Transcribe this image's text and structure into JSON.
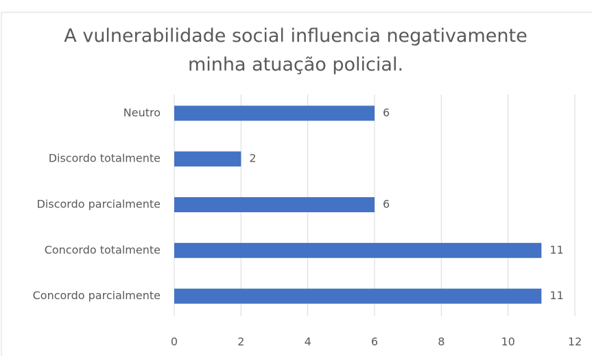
{
  "chart_data": {
    "type": "barh",
    "title": "A vulnerabilidade social influencia negativamente minha atuação policial.",
    "categories": [
      "Neutro",
      "Discordo totalmente",
      "Discordo parcialmente",
      "Concordo totalmente",
      "Concordo parcialmente"
    ],
    "values": [
      6,
      2,
      6,
      11,
      11
    ],
    "color": "#4472c4",
    "xlim": [
      0,
      12
    ],
    "xticks": [
      0,
      2,
      4,
      6,
      8,
      10,
      12
    ],
    "grid": true
  }
}
